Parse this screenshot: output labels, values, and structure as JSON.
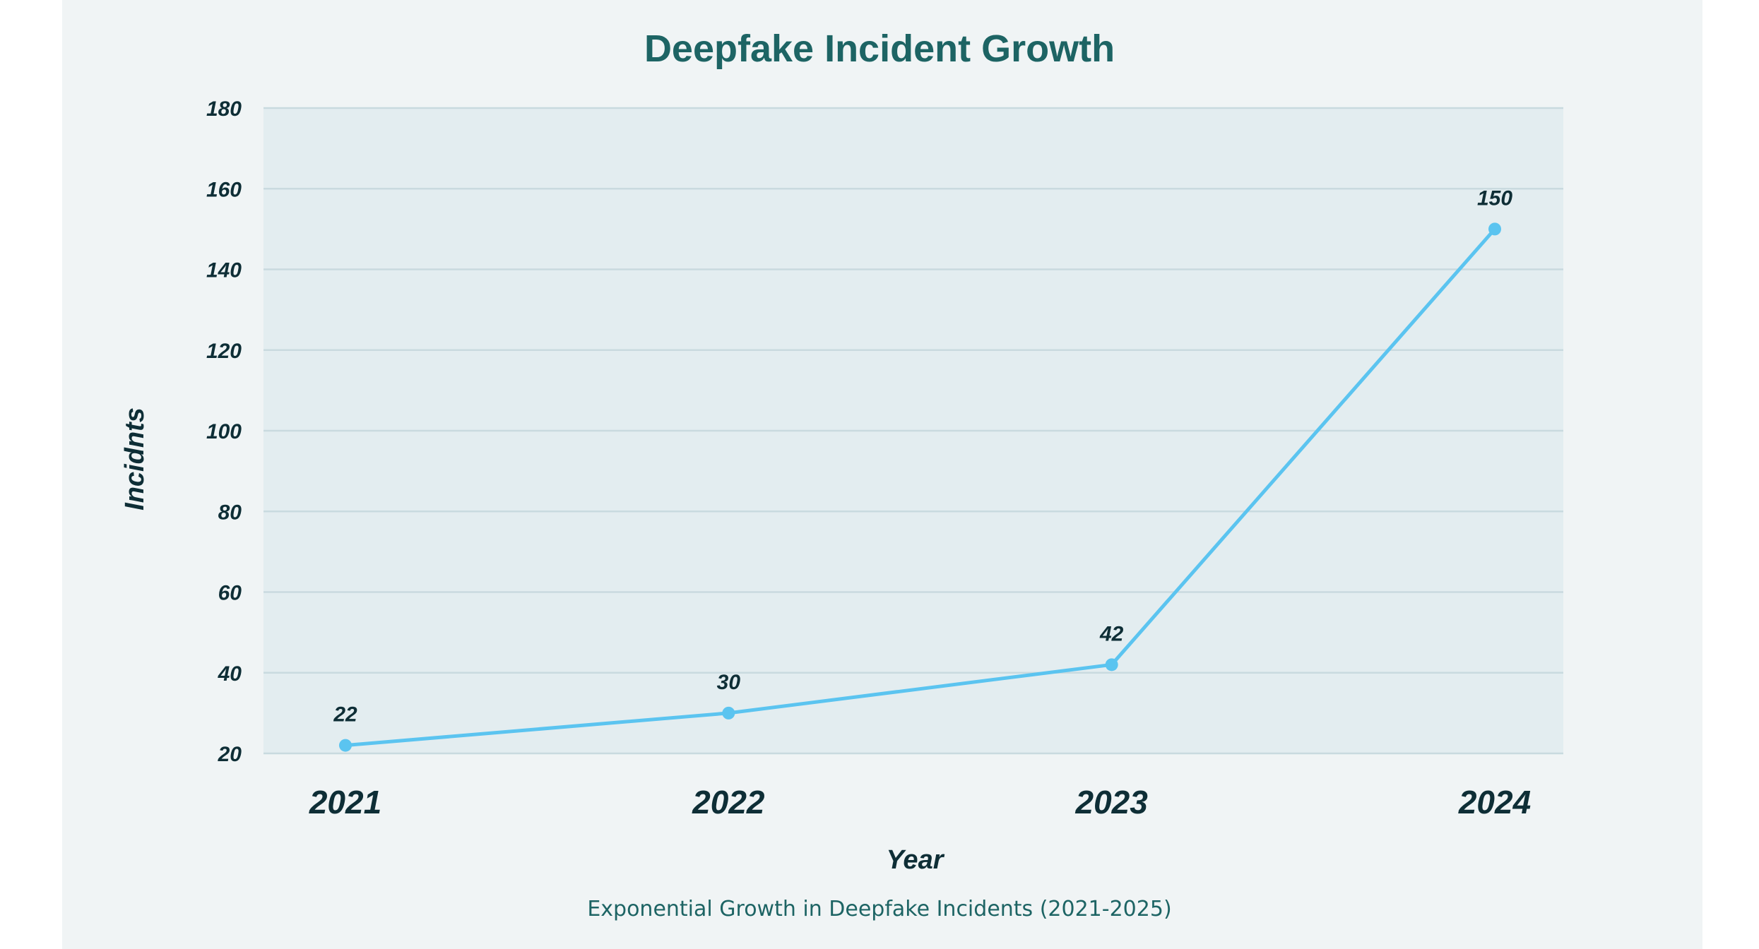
{
  "chart_data": {
    "type": "line",
    "title": "Deepfake Incident Growth",
    "subtitle": "Exponential Growth in Deepfake Incidents (2021-2025)",
    "xlabel": "Year",
    "ylabel": "Incidnts",
    "categories": [
      "2021",
      "2022",
      "2023",
      "2024"
    ],
    "series": [
      {
        "values": [
          22,
          30,
          42,
          150
        ],
        "data_labels": [
          "22",
          "30",
          "42",
          "150"
        ]
      }
    ],
    "ylim": [
      20,
      180
    ],
    "yticks": [
      "180",
      "160",
      "140",
      "120",
      "100",
      "80",
      "60",
      "40",
      "20"
    ],
    "grid": "horizontal",
    "colors": {
      "line": "#5bc4f0",
      "plot_bg": "#e3edf0",
      "grid": "#c9dadf",
      "title": "#1d6464",
      "text": "#0e2e36"
    }
  }
}
